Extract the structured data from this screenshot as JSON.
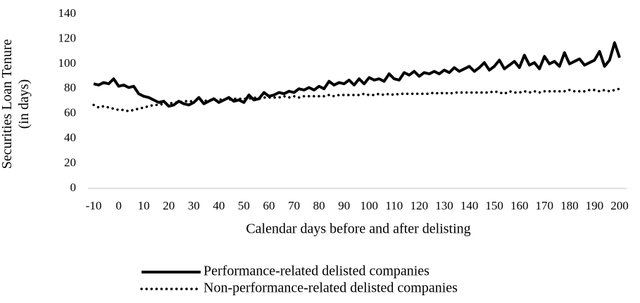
{
  "chart_data": {
    "type": "line",
    "xlabel": "Calendar days before and after delisting",
    "ylabel": "Securities Loan Tenure (in days)",
    "x": [
      -10,
      -8,
      -6,
      -4,
      -2,
      0,
      2,
      4,
      6,
      8,
      10,
      12,
      14,
      16,
      18,
      20,
      22,
      24,
      26,
      28,
      30,
      32,
      34,
      36,
      38,
      40,
      42,
      44,
      46,
      48,
      50,
      52,
      54,
      56,
      58,
      60,
      62,
      64,
      66,
      68,
      70,
      72,
      74,
      76,
      78,
      80,
      82,
      84,
      86,
      88,
      90,
      92,
      94,
      96,
      98,
      100,
      102,
      104,
      106,
      108,
      110,
      112,
      114,
      116,
      118,
      120,
      122,
      124,
      126,
      128,
      130,
      132,
      134,
      136,
      138,
      140,
      142,
      144,
      146,
      148,
      150,
      152,
      154,
      156,
      158,
      160,
      162,
      164,
      166,
      168,
      170,
      172,
      174,
      176,
      178,
      180,
      182,
      184,
      186,
      188,
      190,
      192,
      194,
      196,
      198,
      200
    ],
    "series": [
      {
        "name": "Performance-related delisted companies",
        "color": "#000000",
        "style": "solid",
        "values": [
          84,
          83,
          85,
          84,
          88,
          82,
          83,
          81,
          82,
          76,
          74,
          73,
          71,
          69,
          70,
          66,
          67,
          70,
          68,
          67,
          69,
          73,
          68,
          70,
          72,
          69,
          71,
          73,
          70,
          71,
          69,
          75,
          71,
          72,
          77,
          74,
          75,
          77,
          76,
          78,
          77,
          80,
          79,
          81,
          79,
          82,
          80,
          86,
          83,
          85,
          84,
          87,
          83,
          88,
          84,
          89,
          87,
          88,
          86,
          92,
          88,
          87,
          93,
          91,
          94,
          90,
          93,
          92,
          94,
          92,
          95,
          93,
          97,
          94,
          96,
          98,
          94,
          97,
          101,
          95,
          98,
          103,
          96,
          99,
          102,
          97,
          107,
          99,
          101,
          96,
          106,
          100,
          102,
          98,
          109,
          100,
          102,
          104,
          99,
          101,
          103,
          110,
          98,
          103,
          117,
          105
        ]
      },
      {
        "name": "Non-performance-related delisted companies",
        "color": "#000000",
        "style": "dotted",
        "values": [
          67,
          65,
          66,
          65,
          64,
          63,
          63,
          62,
          63,
          64,
          65,
          66,
          67,
          67,
          68,
          68,
          69,
          69,
          70,
          70,
          70,
          71,
          70,
          71,
          71,
          71,
          72,
          71,
          72,
          72,
          72,
          72,
          73,
          72,
          73,
          73,
          73,
          73,
          74,
          73,
          74,
          73,
          74,
          74,
          74,
          74,
          74,
          75,
          74,
          75,
          75,
          75,
          75,
          75,
          76,
          75,
          75,
          76,
          75,
          76,
          75,
          76,
          76,
          76,
          76,
          76,
          76,
          76,
          77,
          76,
          77,
          76,
          77,
          77,
          77,
          77,
          77,
          77,
          77,
          77,
          78,
          77,
          76,
          78,
          77,
          77,
          78,
          77,
          78,
          77,
          78,
          78,
          78,
          78,
          78,
          79,
          78,
          78,
          78,
          79,
          79,
          78,
          79,
          78,
          79,
          80
        ]
      }
    ],
    "xlim": [
      -10,
      200
    ],
    "xticks": [
      -10,
      0,
      10,
      20,
      30,
      40,
      50,
      60,
      70,
      80,
      90,
      100,
      110,
      120,
      130,
      140,
      150,
      160,
      170,
      180,
      190,
      200
    ],
    "ylim": [
      0,
      140
    ],
    "yticks": [
      0,
      20,
      40,
      60,
      80,
      100,
      120,
      140
    ],
    "grid": false,
    "legend": "bottom"
  }
}
